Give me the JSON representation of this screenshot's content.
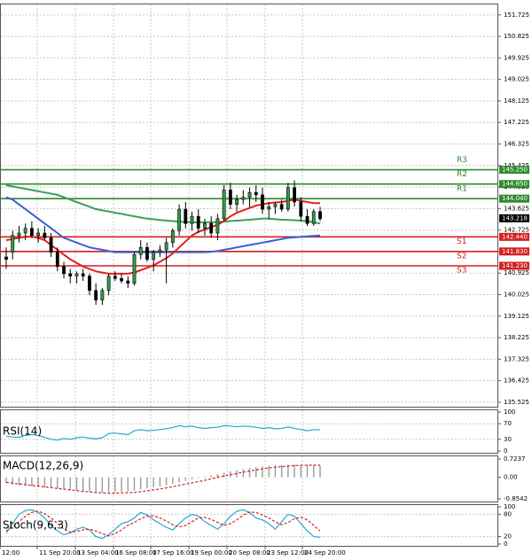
{
  "colors": {
    "background": "#ffffff",
    "grid": "#c8c8c8",
    "frame": "#555555",
    "candle_up": "#2e9e46",
    "candle_down": "#c0392b",
    "ma_fast": "#e02020",
    "ma_mid": "#3b9e5a",
    "ma_slow": "#3a5fd0",
    "resistance": "#2e8b2e",
    "support": "#d32020",
    "indicator": "#2aa7c9",
    "signal": "#d32020",
    "price_tag": "#000000"
  },
  "price_axis": {
    "labels": [
      "151.725",
      "150.825",
      "149.925",
      "149.025",
      "148.125",
      "147.225",
      "146.325",
      "145.425",
      "144.525",
      "143.625",
      "142.725",
      "141.825",
      "140.925",
      "140.025",
      "139.125",
      "138.225",
      "137.325",
      "136.425",
      "135.525"
    ]
  },
  "time_axis": {
    "labels": [
      "12:00",
      "11 Sep 20:00",
      "13 Sep 04:00",
      "16 Sep 08:00",
      "17 Sep 16:00",
      "19 Sep 00:00",
      "20 Sep 08:00",
      "23 Sep 12:00",
      "24 Sep 20:00"
    ]
  },
  "levels": [
    {
      "name": "R3",
      "value": 145.25,
      "tag": "145.250",
      "kind": "resistance"
    },
    {
      "name": "R2",
      "value": 144.65,
      "tag": "144.650",
      "kind": "resistance"
    },
    {
      "name": "R1",
      "value": 144.04,
      "tag": "144.040",
      "kind": "resistance"
    },
    {
      "name": "S1",
      "value": 142.44,
      "tag": "142.440",
      "kind": "support"
    },
    {
      "name": "S2",
      "value": 141.83,
      "tag": "141.830",
      "kind": "support"
    },
    {
      "name": "S3",
      "value": 141.23,
      "tag": "141.230",
      "kind": "support"
    }
  ],
  "current_price": {
    "value": 143.218,
    "tag": "143.218"
  },
  "chart_data": [
    {
      "type": "candlestick",
      "ylim": [
        135.3,
        152.2
      ],
      "y_ticks": [
        151.725,
        150.825,
        149.925,
        149.025,
        148.125,
        147.225,
        146.325,
        145.425,
        144.525,
        143.625,
        142.725,
        141.825,
        140.925,
        140.025,
        139.125,
        138.225,
        137.325,
        136.425,
        135.525
      ],
      "x_labels": [
        "12:00",
        "11 Sep 20:00",
        "13 Sep 04:00",
        "16 Sep 08:00",
        "17 Sep 16:00",
        "19 Sep 00:00",
        "20 Sep 08:00",
        "23 Sep 12:00",
        "24 Sep 20:00"
      ],
      "candles": [
        {
          "o": 141.6,
          "h": 142.0,
          "l": 141.1,
          "c": 141.5
        },
        {
          "o": 141.8,
          "h": 142.7,
          "l": 141.5,
          "c": 142.5
        },
        {
          "o": 142.5,
          "h": 142.9,
          "l": 142.2,
          "c": 142.6
        },
        {
          "o": 142.6,
          "h": 143.0,
          "l": 142.3,
          "c": 142.8
        },
        {
          "o": 142.8,
          "h": 143.1,
          "l": 142.4,
          "c": 142.5
        },
        {
          "o": 142.5,
          "h": 142.8,
          "l": 142.2,
          "c": 142.6
        },
        {
          "o": 142.6,
          "h": 142.9,
          "l": 142.3,
          "c": 142.4
        },
        {
          "o": 142.4,
          "h": 142.6,
          "l": 141.6,
          "c": 141.8
        },
        {
          "o": 141.8,
          "h": 142.0,
          "l": 141.0,
          "c": 141.2
        },
        {
          "o": 141.2,
          "h": 141.4,
          "l": 140.7,
          "c": 140.9
        },
        {
          "o": 140.9,
          "h": 141.1,
          "l": 140.5,
          "c": 140.8
        },
        {
          "o": 140.8,
          "h": 141.0,
          "l": 140.5,
          "c": 140.9
        },
        {
          "o": 140.9,
          "h": 141.1,
          "l": 140.6,
          "c": 140.8
        },
        {
          "o": 140.8,
          "h": 140.9,
          "l": 140.0,
          "c": 140.2
        },
        {
          "o": 140.2,
          "h": 140.5,
          "l": 139.6,
          "c": 139.8
        },
        {
          "o": 139.8,
          "h": 140.3,
          "l": 139.6,
          "c": 140.2
        },
        {
          "o": 140.2,
          "h": 140.9,
          "l": 140.0,
          "c": 140.8
        },
        {
          "o": 140.8,
          "h": 141.0,
          "l": 140.6,
          "c": 140.7
        },
        {
          "o": 140.7,
          "h": 140.9,
          "l": 140.5,
          "c": 140.6
        },
        {
          "o": 140.6,
          "h": 140.8,
          "l": 140.3,
          "c": 140.5
        },
        {
          "o": 140.5,
          "h": 141.8,
          "l": 140.4,
          "c": 141.7
        },
        {
          "o": 141.7,
          "h": 142.3,
          "l": 141.5,
          "c": 142.0
        },
        {
          "o": 142.0,
          "h": 142.2,
          "l": 141.4,
          "c": 141.5
        },
        {
          "o": 141.5,
          "h": 141.9,
          "l": 141.0,
          "c": 141.8
        },
        {
          "o": 141.8,
          "h": 142.1,
          "l": 141.6,
          "c": 141.9
        },
        {
          "o": 141.9,
          "h": 142.4,
          "l": 140.5,
          "c": 142.2
        },
        {
          "o": 142.2,
          "h": 142.8,
          "l": 142.0,
          "c": 142.7
        },
        {
          "o": 142.7,
          "h": 143.8,
          "l": 142.5,
          "c": 143.6
        },
        {
          "o": 143.6,
          "h": 143.9,
          "l": 142.8,
          "c": 143.0
        },
        {
          "o": 143.0,
          "h": 143.5,
          "l": 142.7,
          "c": 143.3
        },
        {
          "o": 143.3,
          "h": 143.6,
          "l": 142.6,
          "c": 142.8
        },
        {
          "o": 142.8,
          "h": 143.2,
          "l": 142.5,
          "c": 143.0
        },
        {
          "o": 143.0,
          "h": 143.3,
          "l": 142.4,
          "c": 142.6
        },
        {
          "o": 142.6,
          "h": 143.4,
          "l": 142.3,
          "c": 143.2
        },
        {
          "o": 143.2,
          "h": 144.6,
          "l": 143.1,
          "c": 144.4
        },
        {
          "o": 144.4,
          "h": 144.7,
          "l": 143.6,
          "c": 143.8
        },
        {
          "o": 143.8,
          "h": 144.2,
          "l": 143.5,
          "c": 144.0
        },
        {
          "o": 144.0,
          "h": 144.4,
          "l": 143.8,
          "c": 144.1
        },
        {
          "o": 144.1,
          "h": 144.5,
          "l": 143.7,
          "c": 144.3
        },
        {
          "o": 144.3,
          "h": 144.6,
          "l": 143.9,
          "c": 144.2
        },
        {
          "o": 144.2,
          "h": 144.5,
          "l": 143.4,
          "c": 143.6
        },
        {
          "o": 143.6,
          "h": 143.9,
          "l": 143.2,
          "c": 143.7
        },
        {
          "o": 143.7,
          "h": 143.9,
          "l": 143.4,
          "c": 143.8
        },
        {
          "o": 143.8,
          "h": 144.0,
          "l": 143.5,
          "c": 143.6
        },
        {
          "o": 143.6,
          "h": 144.7,
          "l": 143.5,
          "c": 144.5
        },
        {
          "o": 144.5,
          "h": 144.8,
          "l": 143.7,
          "c": 143.9
        },
        {
          "o": 143.9,
          "h": 144.1,
          "l": 143.1,
          "c": 143.3
        },
        {
          "o": 143.3,
          "h": 143.6,
          "l": 142.9,
          "c": 143.0
        },
        {
          "o": 143.0,
          "h": 143.6,
          "l": 142.9,
          "c": 143.5
        },
        {
          "o": 143.5,
          "h": 143.7,
          "l": 143.1,
          "c": 143.2
        }
      ],
      "series": [
        {
          "kind": "ma_slow",
          "values": [
            144.1,
            144.0,
            143.8,
            143.6,
            143.4,
            143.2,
            143.0,
            142.8,
            142.6,
            142.4,
            142.3,
            142.2,
            142.1,
            142.0,
            141.95,
            141.9,
            141.85,
            141.8,
            141.8,
            141.8,
            141.8,
            141.8,
            141.8,
            141.8,
            141.8,
            141.8,
            141.8,
            141.8,
            141.8,
            141.8,
            141.8,
            141.8,
            141.82,
            141.85,
            141.9,
            141.95,
            142.0,
            142.05,
            142.1,
            142.15,
            142.2,
            142.25,
            142.3,
            142.35,
            142.4,
            142.42,
            142.44,
            142.46,
            142.48,
            142.5
          ]
        },
        {
          "kind": "ma_mid",
          "values": [
            144.6,
            144.55,
            144.5,
            144.45,
            144.4,
            144.35,
            144.3,
            144.25,
            144.2,
            144.1,
            144.0,
            143.9,
            143.8,
            143.7,
            143.6,
            143.55,
            143.5,
            143.45,
            143.4,
            143.35,
            143.3,
            143.25,
            143.2,
            143.18,
            143.15,
            143.12,
            143.1,
            143.08,
            143.06,
            143.05,
            143.05,
            143.05,
            143.05,
            143.06,
            143.08,
            143.1,
            143.12,
            143.14,
            143.16,
            143.18,
            143.2,
            143.2,
            143.18,
            143.16,
            143.15,
            143.14,
            143.12,
            143.1,
            143.05,
            143.0
          ]
        },
        {
          "kind": "ma_fast",
          "values": [
            142.3,
            142.35,
            142.4,
            142.45,
            142.45,
            142.4,
            142.3,
            142.1,
            141.9,
            141.7,
            141.5,
            141.35,
            141.2,
            141.1,
            141.0,
            140.95,
            140.9,
            140.9,
            140.9,
            140.9,
            140.95,
            141.05,
            141.15,
            141.25,
            141.4,
            141.55,
            141.75,
            142.0,
            142.25,
            142.5,
            142.65,
            142.75,
            142.85,
            142.95,
            143.1,
            143.3,
            143.45,
            143.55,
            143.65,
            143.75,
            143.8,
            143.85,
            143.88,
            143.9,
            143.95,
            144.0,
            143.95,
            143.9,
            143.85,
            143.85
          ]
        }
      ]
    },
    {
      "type": "line",
      "title": "RSI(14)",
      "ylim": [
        0,
        100
      ],
      "y_ticks": [
        100,
        70,
        30,
        0
      ],
      "series": [
        {
          "kind": "rsi",
          "values": [
            38,
            36,
            35,
            40,
            42,
            40,
            35,
            30,
            28,
            32,
            30,
            34,
            36,
            33,
            31,
            34,
            45,
            46,
            44,
            42,
            52,
            55,
            52,
            53,
            55,
            57,
            60,
            65,
            62,
            64,
            60,
            58,
            60,
            61,
            65,
            64,
            62,
            64,
            63,
            61,
            58,
            60,
            57,
            58,
            62,
            58,
            55,
            52,
            55,
            54
          ]
        }
      ]
    },
    {
      "type": "bar",
      "title": "MACD(12,26,9)",
      "ylim": [
        -0.8542,
        0.7237
      ],
      "y_ticks": [
        0.7237,
        0.0,
        -0.8542
      ],
      "series": [
        {
          "kind": "histogram",
          "values": [
            -0.25,
            -0.3,
            -0.32,
            -0.35,
            -0.36,
            -0.38,
            -0.4,
            -0.42,
            -0.45,
            -0.47,
            -0.5,
            -0.52,
            -0.55,
            -0.56,
            -0.58,
            -0.6,
            -0.6,
            -0.59,
            -0.58,
            -0.56,
            -0.52,
            -0.48,
            -0.44,
            -0.4,
            -0.36,
            -0.32,
            -0.26,
            -0.2,
            -0.14,
            -0.08,
            -0.03,
            0.03,
            0.08,
            0.13,
            0.18,
            0.23,
            0.28,
            0.32,
            0.36,
            0.4,
            0.43,
            0.45,
            0.47,
            0.48,
            0.49,
            0.5,
            0.49,
            0.48,
            0.47,
            0.46
          ]
        },
        {
          "kind": "signal",
          "values": [
            -0.2,
            -0.23,
            -0.26,
            -0.29,
            -0.32,
            -0.35,
            -0.38,
            -0.41,
            -0.44,
            -0.47,
            -0.5,
            -0.53,
            -0.56,
            -0.58,
            -0.6,
            -0.62,
            -0.63,
            -0.63,
            -0.62,
            -0.61,
            -0.6,
            -0.57,
            -0.54,
            -0.5,
            -0.46,
            -0.42,
            -0.37,
            -0.32,
            -0.27,
            -0.22,
            -0.17,
            -0.12,
            -0.06,
            0.0,
            0.05,
            0.1,
            0.15,
            0.2,
            0.25,
            0.29,
            0.33,
            0.37,
            0.4,
            0.42,
            0.44,
            0.46,
            0.47,
            0.48,
            0.48,
            0.48
          ]
        }
      ]
    },
    {
      "type": "line",
      "title": "Stoch(9,6,3)",
      "ylim": [
        0,
        100
      ],
      "y_ticks": [
        100,
        80,
        20,
        0
      ],
      "series": [
        {
          "kind": "main",
          "values": [
            30,
            55,
            80,
            90,
            92,
            85,
            70,
            50,
            35,
            25,
            30,
            40,
            45,
            38,
            20,
            15,
            25,
            40,
            55,
            60,
            70,
            85,
            78,
            65,
            55,
            45,
            38,
            55,
            70,
            80,
            75,
            60,
            50,
            40,
            55,
            75,
            88,
            92,
            85,
            70,
            65,
            55,
            40,
            60,
            80,
            75,
            55,
            35,
            20,
            18
          ]
        },
        {
          "kind": "signal",
          "values": [
            35,
            45,
            60,
            75,
            85,
            88,
            82,
            70,
            55,
            40,
            32,
            34,
            38,
            40,
            35,
            28,
            22,
            28,
            38,
            50,
            58,
            68,
            75,
            76,
            70,
            62,
            52,
            46,
            50,
            60,
            70,
            72,
            66,
            58,
            50,
            55,
            65,
            78,
            86,
            85,
            78,
            70,
            60,
            52,
            58,
            68,
            72,
            65,
            50,
            35
          ]
        }
      ]
    }
  ]
}
